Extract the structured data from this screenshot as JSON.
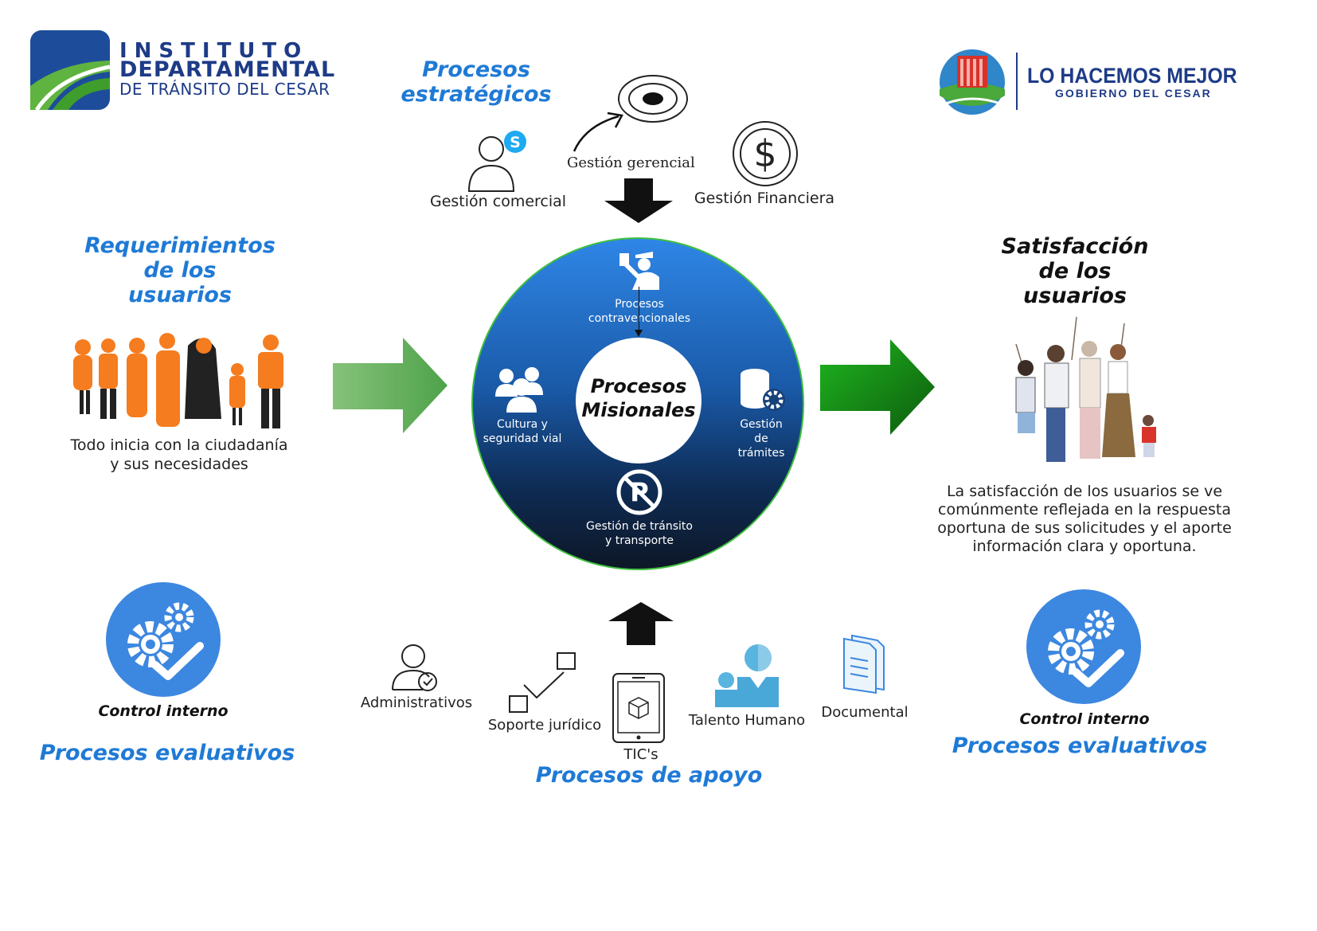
{
  "logo_left": {
    "line1": "INSTITUTO",
    "line2": "DEPARTAMENTAL",
    "line3": "DE TRÁNSITO DEL CESAR"
  },
  "logo_right": {
    "line1": "LO HACEMOS MEJOR",
    "line2": "GOBIERNO DEL CESAR"
  },
  "strategic": {
    "title_line1": "Procesos",
    "title_line2": "estratégicos",
    "items": [
      "Gestión comercial",
      "Gestión gerencial",
      "Gestión Financiera"
    ]
  },
  "requirements": {
    "title_line1": "Requerimientos",
    "title_line2": "de los",
    "title_line3": "usuarios",
    "text_line1": "Todo inicia con la ciudadanía",
    "text_line2": "y sus necesidades"
  },
  "satisfaction": {
    "title_line1": "Satisfacción",
    "title_line2": "de los",
    "title_line3": "usuarios",
    "text_line1": "La satisfacción de los usuarios se ve",
    "text_line2": "comúnmente reflejada en la respuesta",
    "text_line3": "oportuna de sus solicitudes y el aporte",
    "text_line4": "información clara y oportuna."
  },
  "missional": {
    "center_line1": "Procesos",
    "center_line2": "Misionales",
    "top_line1": "Procesos",
    "top_line2": "contravencionales",
    "left_line1": "Cultura y",
    "left_line2": "seguridad vial",
    "right_line1": "Gestión",
    "right_line2": "de",
    "right_line3": "trámites",
    "bottom_line1": "Gestión de tránsito",
    "bottom_line2": "y transporte"
  },
  "evaluative": {
    "control_label": "Control interno",
    "title": "Procesos evaluativos"
  },
  "support": {
    "title": "Procesos de apoyo",
    "items": [
      "Administrativos",
      "Soporte jurídico",
      "TIC's",
      "Talento Humano",
      "Documental"
    ]
  },
  "colors": {
    "accent_blue": "#1f7ad6",
    "circle_top": "#2f86e6",
    "circle_bottom": "#0d1726",
    "arrow_green": "#1fa31f"
  }
}
